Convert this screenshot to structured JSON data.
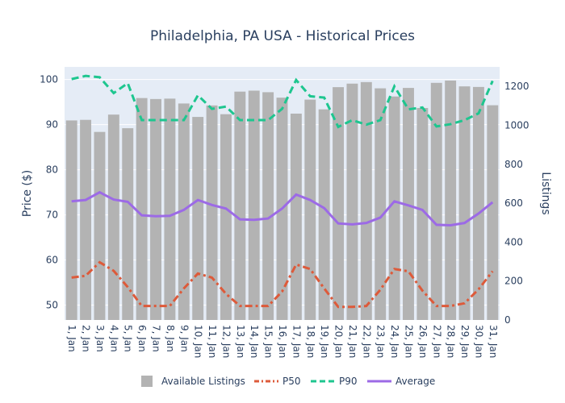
{
  "chart_data": {
    "type": "bar",
    "title": "Philadelphia, PA USA - Historical Prices",
    "categories": [
      "1, Jan",
      "2, Jan",
      "3, Jan",
      "4, Jan",
      "5, Jan",
      "6, Jan",
      "7, Jan",
      "8, Jan",
      "9, Jan",
      "10, Jan",
      "11, Jan",
      "12, Jan",
      "13, Jan",
      "14, Jan",
      "15, Jan",
      "16, Jan",
      "17, Jan",
      "18, Jan",
      "19, Jan",
      "20, Jan",
      "21, Jan",
      "22, Jan",
      "23, Jan",
      "24, Jan",
      "25, Jan",
      "26, Jan",
      "27, Jan",
      "28, Jan",
      "29, Jan",
      "30, Jan",
      "31, Jan"
    ],
    "ylabel": "Price ($)",
    "y2label": "Listings",
    "ylim": [
      46.7,
      102.8
    ],
    "y2lim": [
      0,
      1300
    ],
    "yticks": [
      50,
      60,
      70,
      80,
      90,
      100
    ],
    "y2ticks": [
      0,
      200,
      400,
      600,
      800,
      1000,
      1200
    ],
    "series": [
      {
        "name": "Available Listings",
        "type": "bar",
        "axis": "y2",
        "color": "#b3b3b3",
        "values": [
          1025,
          1028,
          966,
          1055,
          985,
          1140,
          1135,
          1137,
          1112,
          1043,
          1102,
          1057,
          1173,
          1178,
          1170,
          1142,
          1060,
          1132,
          1082,
          1196,
          1214,
          1222,
          1190,
          1148,
          1192,
          1089,
          1218,
          1230,
          1200,
          1197,
          1103
        ]
      },
      {
        "name": "P50",
        "type": "line",
        "axis": "y",
        "color": "#dd5a3a",
        "dash": "dashdot",
        "values": [
          56.1,
          56.5,
          59.5,
          57.6,
          54.0,
          49.8,
          49.8,
          49.8,
          53.7,
          57.0,
          56.1,
          52.5,
          49.8,
          49.8,
          49.8,
          53.0,
          59.0,
          58.0,
          53.7,
          49.6,
          49.6,
          49.8,
          53.4,
          58.0,
          57.5,
          53.2,
          49.8,
          49.8,
          50.4,
          53.5,
          57.5
        ]
      },
      {
        "name": "P90",
        "type": "line",
        "axis": "y",
        "color": "#1ec68f",
        "dash": "dash",
        "values": [
          100.1,
          100.8,
          100.5,
          97.0,
          99.2,
          91.0,
          91.0,
          91.0,
          91.0,
          96.5,
          93.5,
          94.0,
          91.0,
          91.0,
          91.0,
          93.5,
          99.9,
          96.3,
          96.0,
          89.5,
          91.0,
          90.0,
          91.0,
          98.5,
          93.4,
          93.8,
          89.6,
          90.1,
          91.0,
          92.5,
          99.7
        ]
      },
      {
        "name": "Average",
        "type": "line",
        "axis": "y",
        "color": "#9c6ae6",
        "dash": "solid",
        "values": [
          73.0,
          73.3,
          75.0,
          73.4,
          72.9,
          69.9,
          69.7,
          69.8,
          71.1,
          73.3,
          72.2,
          71.4,
          69.0,
          68.9,
          69.2,
          71.4,
          74.5,
          73.3,
          71.5,
          68.1,
          67.9,
          68.2,
          69.4,
          73.0,
          72.1,
          71.1,
          67.8,
          67.7,
          68.2,
          70.3,
          72.8
        ]
      }
    ],
    "legend": {
      "position": "bottom",
      "orientation": "horizontal"
    },
    "grid": {
      "x": false,
      "y": true
    },
    "plot_bgcolor": "#e5ecf6",
    "paper_bgcolor": "#ffffff"
  }
}
